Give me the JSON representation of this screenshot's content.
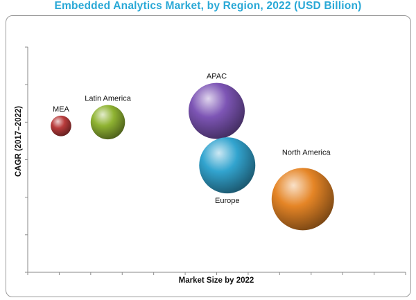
{
  "chart_data": {
    "type": "scatter",
    "title": "Embedded Analytics Market, by Region, 2022 (USD Billion)",
    "xlabel": "Market Size by 2022",
    "ylabel": "CAGR (2017–2022)",
    "xlim": [
      0,
      12.5
    ],
    "ylim": [
      0,
      12
    ],
    "grid": false,
    "legend": "none",
    "points": [
      {
        "label": "MEA",
        "x": 1.1,
        "y": 7.8,
        "size": 0.33,
        "color": "#b83b3b",
        "label_pos": "above"
      },
      {
        "label": "Latin America",
        "x": 2.65,
        "y": 8.0,
        "size": 0.55,
        "color": "#8fb332",
        "label_pos": "above"
      },
      {
        "label": "APAC",
        "x": 6.25,
        "y": 8.6,
        "size": 0.9,
        "color": "#7d55b5",
        "label_pos": "above"
      },
      {
        "label": "Europe",
        "x": 6.6,
        "y": 5.7,
        "size": 0.9,
        "color": "#32a4cf",
        "label_pos": "below"
      },
      {
        "label": "North America",
        "x": 9.1,
        "y": 3.9,
        "size": 1.0,
        "color": "#e58526",
        "label_pos": "above-right"
      }
    ]
  }
}
